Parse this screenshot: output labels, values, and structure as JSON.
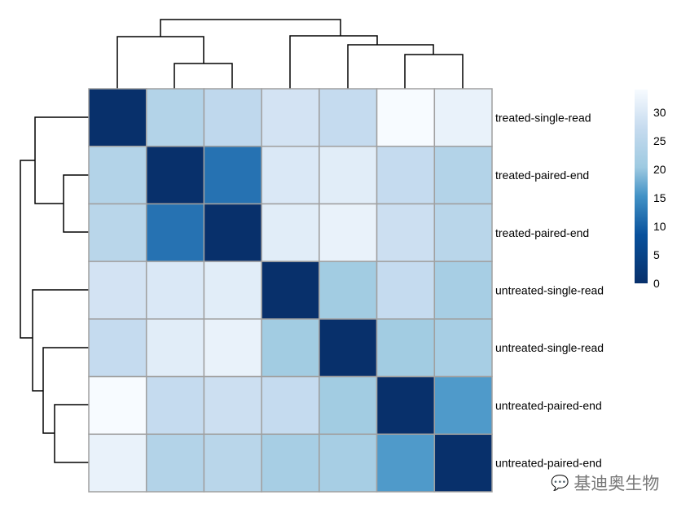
{
  "chart_data": {
    "type": "heatmap",
    "title": "",
    "row_labels": [
      "treated-single-read",
      "treated-paired-end",
      "treated-paired-end",
      "untreated-single-read",
      "untreated-single-read",
      "untreated-paired-end",
      "untreated-paired-end"
    ],
    "values": [
      [
        0,
        24,
        26,
        29,
        27,
        34,
        32
      ],
      [
        24,
        0,
        12,
        30,
        31,
        27,
        24
      ],
      [
        25,
        12,
        0,
        31,
        32,
        28,
        25
      ],
      [
        29,
        30,
        31,
        0,
        21,
        27,
        22
      ],
      [
        27,
        31,
        32,
        21,
        0,
        21,
        22
      ],
      [
        34,
        27,
        28,
        27,
        21,
        0,
        16
      ],
      [
        32,
        24,
        25,
        22,
        22,
        16,
        0
      ]
    ],
    "color_range": [
      0,
      34
    ],
    "colors": {
      "low": "#08306b",
      "high": "#f7fbff",
      "grid": "#a0a0a0"
    },
    "legend": {
      "ticks": [
        "0",
        "5",
        "10",
        "15",
        "20",
        "25",
        "30"
      ],
      "placement": "right"
    },
    "dendrograms": [
      "rows",
      "columns"
    ]
  },
  "watermark": "基迪奥生物"
}
